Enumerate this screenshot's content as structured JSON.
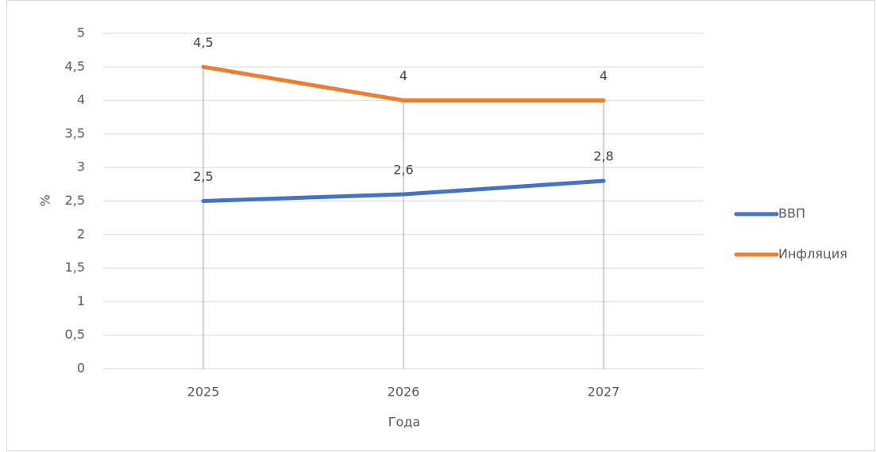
{
  "chart_data": {
    "type": "line",
    "categories": [
      "2025",
      "2026",
      "2027"
    ],
    "series": [
      {
        "name": "ВВП",
        "color": "#4472c4",
        "values": [
          2.5,
          2.6,
          2.8
        ],
        "value_labels": [
          "2,5",
          "2,6",
          "2,8"
        ]
      },
      {
        "name": "Инфляция",
        "color": "#ed7d31",
        "values": [
          4.5,
          4,
          4
        ],
        "value_labels": [
          "4,5",
          "4",
          "4"
        ]
      }
    ],
    "x_label": "Года",
    "y_label": "%",
    "ylim": [
      0,
      5
    ],
    "yticks": [
      0,
      {
        "value": 0.5,
        "label": "0,5"
      },
      1,
      {
        "value": 1.5,
        "label": "1,5"
      },
      2,
      {
        "value": 2.5,
        "label": "2,5"
      },
      3,
      {
        "value": 3.5,
        "label": "3,5"
      },
      4,
      {
        "value": 4.5,
        "label": "4,5"
      },
      5
    ],
    "grid": true,
    "legend": "right"
  }
}
